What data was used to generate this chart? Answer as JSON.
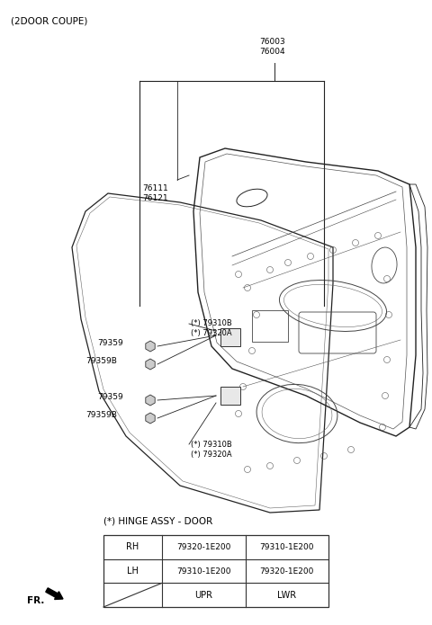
{
  "title": "(2DOOR COUPE)",
  "bg_color": "#ffffff",
  "fig_width": 4.8,
  "fig_height": 6.95,
  "dpi": 100,
  "table_title": "(*) HINGE ASSY - DOOR",
  "table": {
    "col_headers": [
      "UPR",
      "LWR"
    ],
    "row_headers": [
      "LH",
      "RH"
    ],
    "data": [
      [
        "79310-1E200",
        "79320-1E200"
      ],
      [
        "79320-1E200",
        "79310-1E200"
      ]
    ]
  },
  "lc": "#222222",
  "lw": 0.8
}
